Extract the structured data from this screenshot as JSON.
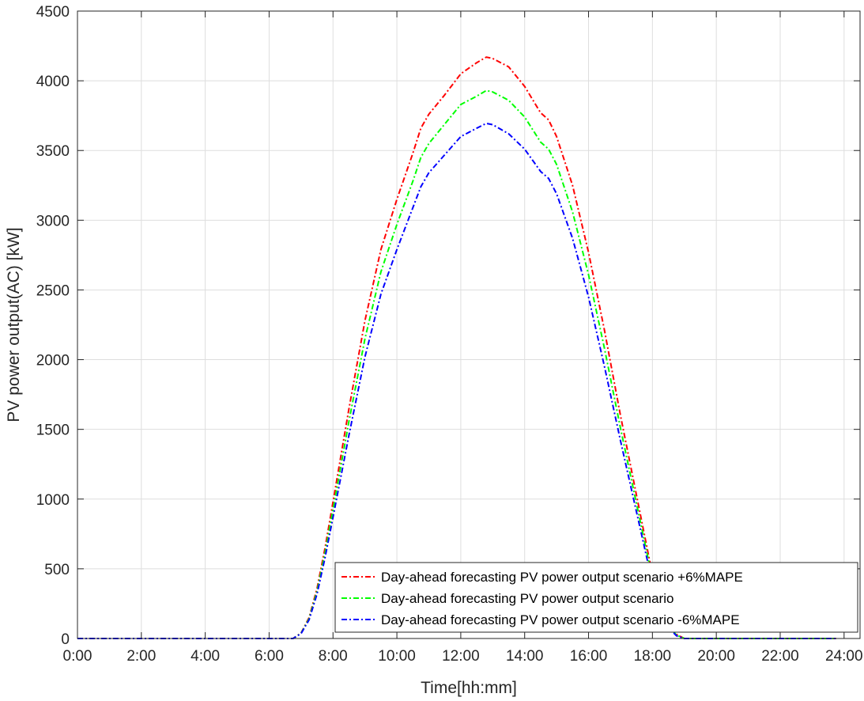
{
  "chart_data": {
    "type": "line",
    "title": "",
    "xlabel": "Time[hh:mm]",
    "ylabel": "PV power output(AC) [kW]",
    "xlim": [
      0,
      24.5
    ],
    "ylim": [
      0,
      4500
    ],
    "x_ticks": [
      0,
      2,
      4,
      6,
      8,
      10,
      12,
      14,
      16,
      18,
      20,
      22,
      24
    ],
    "x_tick_labels": [
      "0:00",
      "2:00",
      "4:00",
      "6:00",
      "8:00",
      "10:00",
      "12:00",
      "14:00",
      "16:00",
      "18:00",
      "20:00",
      "22:00",
      "24:00"
    ],
    "y_ticks": [
      0,
      500,
      1000,
      1500,
      2000,
      2500,
      3000,
      3500,
      4000,
      4500
    ],
    "y_tick_labels": [
      "0",
      "500",
      "1000",
      "1500",
      "2000",
      "2500",
      "3000",
      "3500",
      "4000",
      "4500"
    ],
    "grid": true,
    "legend_position": "bottom-right",
    "series": [
      {
        "name": "Day-ahead forecasting PV power output scenario +6%MAPE",
        "color": "#ff0000",
        "line_style": "dash-dot",
        "x": [
          0,
          6.75,
          7.0,
          7.25,
          7.5,
          7.75,
          8.0,
          8.5,
          9.0,
          9.5,
          10.0,
          10.5,
          10.75,
          11.0,
          11.5,
          12.0,
          12.5,
          12.8,
          13.0,
          13.5,
          14.0,
          14.5,
          14.75,
          15.0,
          15.5,
          16.0,
          16.5,
          17.0,
          17.5,
          18.0,
          18.25,
          18.5,
          18.75,
          19.0,
          20.0,
          21.0,
          22.0,
          23.75
        ],
        "y": [
          0,
          0,
          40,
          150,
          360,
          650,
          980,
          1650,
          2280,
          2790,
          3150,
          3480,
          3660,
          3760,
          3900,
          4050,
          4130,
          4170,
          4160,
          4100,
          3960,
          3770,
          3720,
          3600,
          3250,
          2770,
          2210,
          1600,
          1030,
          460,
          250,
          100,
          30,
          0,
          0,
          0,
          0,
          0
        ]
      },
      {
        "name": "Day-ahead forecasting PV power output scenario",
        "color": "#00ff00",
        "line_style": "dash-dot",
        "x": [
          0,
          6.75,
          7.0,
          7.25,
          7.5,
          7.75,
          8.0,
          8.5,
          9.0,
          9.5,
          10.0,
          10.5,
          10.75,
          11.0,
          11.5,
          12.0,
          12.5,
          12.8,
          13.0,
          13.5,
          14.0,
          14.5,
          14.75,
          15.0,
          15.5,
          16.0,
          16.5,
          17.0,
          17.5,
          18.0,
          18.25,
          18.5,
          18.75,
          19.0,
          20.0,
          21.0,
          22.0,
          23.75
        ],
        "y": [
          0,
          0,
          38,
          142,
          340,
          615,
          925,
          1560,
          2150,
          2630,
          2970,
          3280,
          3450,
          3550,
          3690,
          3830,
          3890,
          3930,
          3920,
          3860,
          3740,
          3560,
          3510,
          3400,
          3060,
          2610,
          2080,
          1510,
          970,
          430,
          235,
          90,
          25,
          0,
          0,
          0,
          0,
          0
        ]
      },
      {
        "name": "Day-ahead forecasting PV power output scenario -6%MAPE",
        "color": "#0000ff",
        "line_style": "dash-dot",
        "x": [
          0,
          6.75,
          7.0,
          7.25,
          7.5,
          7.75,
          8.0,
          8.5,
          9.0,
          9.5,
          10.0,
          10.5,
          10.75,
          11.0,
          11.5,
          12.0,
          12.5,
          12.8,
          13.0,
          13.5,
          14.0,
          14.5,
          14.75,
          15.0,
          15.5,
          16.0,
          16.5,
          17.0,
          17.5,
          18.0,
          18.25,
          18.5,
          18.75,
          19.0,
          20.0,
          21.0,
          22.0,
          23.75
        ],
        "y": [
          0,
          0,
          36,
          134,
          320,
          580,
          870,
          1460,
          2020,
          2470,
          2790,
          3090,
          3240,
          3340,
          3470,
          3600,
          3660,
          3695,
          3685,
          3620,
          3510,
          3350,
          3300,
          3190,
          2870,
          2450,
          1950,
          1420,
          910,
          400,
          215,
          80,
          20,
          0,
          0,
          0,
          0,
          0
        ]
      }
    ]
  }
}
